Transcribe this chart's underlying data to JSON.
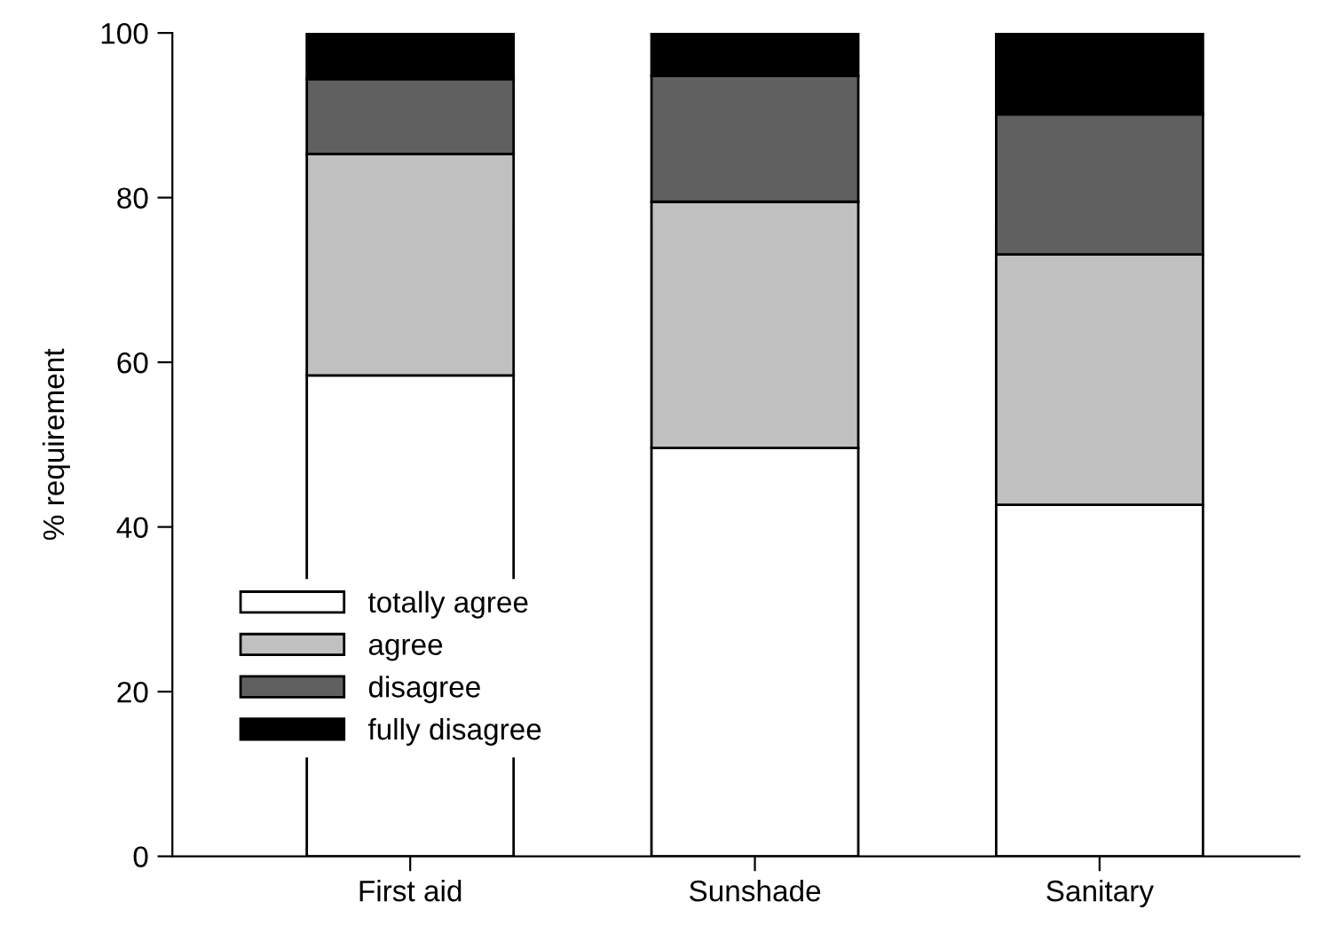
{
  "chart_data": {
    "type": "bar",
    "stacked": true,
    "ylabel": "% requirement",
    "categories": [
      "First aid",
      "Sunshade",
      "Sanitary"
    ],
    "series": [
      {
        "name": "totally agree",
        "color": "#ffffff",
        "values": [
          58.4,
          49.6,
          42.7
        ]
      },
      {
        "name": "agree",
        "color": "#c0c0c0",
        "values": [
          26.9,
          29.9,
          30.4
        ]
      },
      {
        "name": "disagree",
        "color": "#606060",
        "values": [
          9.1,
          15.3,
          17.0
        ]
      },
      {
        "name": "fully disagree",
        "color": "#000000",
        "values": [
          5.6,
          5.2,
          9.9
        ]
      }
    ],
    "ylim": [
      0,
      100
    ],
    "yticks": [
      0,
      20,
      40,
      60,
      80,
      100
    ],
    "grid": false,
    "legend": "bottom left"
  }
}
